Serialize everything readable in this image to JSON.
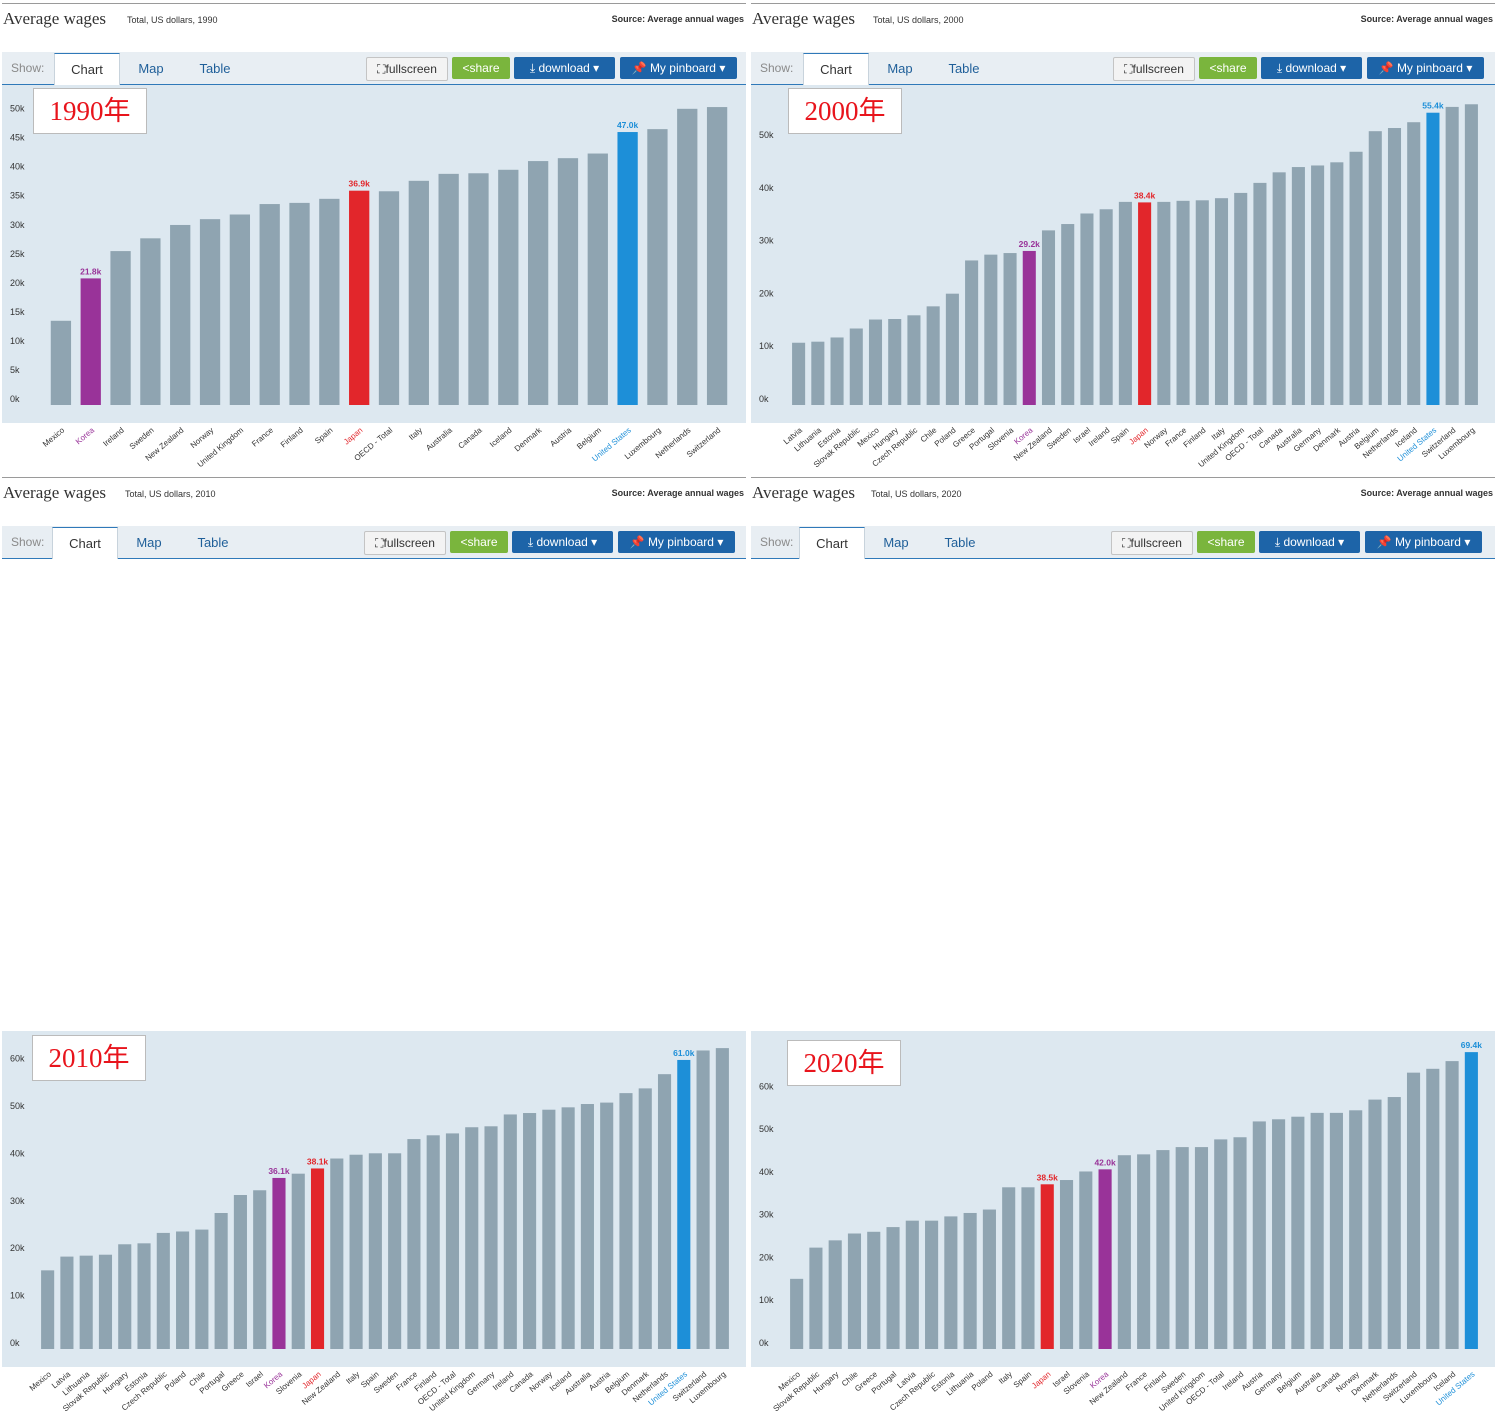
{
  "panels": [
    {
      "title": "Average wages",
      "subtitle": "Total, US dollars, 1990",
      "source": "Source: Average annual wages",
      "ui": {
        "show": "Show:",
        "tabs": [
          "Chart",
          "Map",
          "Table"
        ],
        "fullscreen": "fullscreen",
        "share": "share",
        "download": "download",
        "pinboard": "My pinboard"
      },
      "year_label": "1990年",
      "chart_data": {
        "type": "bar",
        "ylim": [
          0,
          52000
        ],
        "yticks": [
          0,
          5000,
          10000,
          15000,
          20000,
          25000,
          30000,
          35000,
          40000,
          45000,
          50000
        ],
        "ytick_labels": [
          "0k",
          "5k",
          "10k",
          "15k",
          "20k",
          "25k",
          "30k",
          "35k",
          "40k",
          "45k",
          "50k"
        ],
        "categories": [
          "Mexico",
          "Korea",
          "Ireland",
          "Sweden",
          "New Zealand",
          "Norway",
          "United Kingdom",
          "France",
          "Finland",
          "Spain",
          "Japan",
          "OECD - Total",
          "Italy",
          "Australia",
          "Canada",
          "Iceland",
          "Denmark",
          "Austria",
          "Belgium",
          "United States",
          "Luxembourg",
          "Netherlands",
          "Switzerland"
        ],
        "values": [
          14500,
          21800,
          26500,
          28700,
          31000,
          32000,
          32800,
          34600,
          34800,
          35500,
          36900,
          36800,
          38600,
          39800,
          39900,
          40500,
          42000,
          42500,
          43300,
          47000,
          47500,
          51000,
          51300
        ],
        "highlights": [
          {
            "category": "Korea",
            "color": "#993399",
            "label": "21.8k"
          },
          {
            "category": "Japan",
            "color": "#e2262b",
            "label": "36.9k"
          },
          {
            "category": "United States",
            "color": "#1d8fd8",
            "label": "47.0k"
          }
        ],
        "default_color": "#8fa4b1"
      }
    },
    {
      "title": "Average wages",
      "subtitle": "Total, US dollars, 2000",
      "source": "Source: Average annual wages",
      "ui": {
        "show": "Show:",
        "tabs": [
          "Chart",
          "Map",
          "Table"
        ],
        "fullscreen": "fullscreen",
        "share": "share",
        "download": "download",
        "pinboard": "My pinboard"
      },
      "year_label": "2000年",
      "chart_data": {
        "type": "bar",
        "ylim": [
          0,
          58000
        ],
        "yticks": [
          0,
          10000,
          20000,
          30000,
          40000,
          50000
        ],
        "ytick_labels": [
          "0k",
          "10k",
          "20k",
          "30k",
          "40k",
          "50k"
        ],
        "categories": [
          "Latvia",
          "Lithuania",
          "Estonia",
          "Slovak Republic",
          "Mexico",
          "Hungary",
          "Czech Republic",
          "Chile",
          "Poland",
          "Greece",
          "Portugal",
          "Slovenia",
          "Korea",
          "New Zealand",
          "Sweden",
          "Israel",
          "Ireland",
          "Spain",
          "Japan",
          "Norway",
          "France",
          "Finland",
          "Italy",
          "United Kingdom",
          "OECD - Total",
          "Canada",
          "Australia",
          "Germany",
          "Denmark",
          "Austria",
          "Belgium",
          "Netherlands",
          "Iceland",
          "United States",
          "Switzerland",
          "Luxembourg"
        ],
        "values": [
          11800,
          12000,
          12800,
          14500,
          16200,
          16300,
          17000,
          18700,
          21100,
          27400,
          28500,
          28800,
          29200,
          33100,
          34300,
          36300,
          37100,
          38500,
          38400,
          38500,
          38700,
          38800,
          39200,
          40200,
          42100,
          44100,
          45100,
          45400,
          46000,
          48000,
          51900,
          52500,
          53600,
          55400,
          56500,
          57000
        ],
        "highlights": [
          {
            "category": "Korea",
            "color": "#993399",
            "label": "29.2k"
          },
          {
            "category": "Japan",
            "color": "#e2262b",
            "label": "38.4k"
          },
          {
            "category": "United States",
            "color": "#1d8fd8",
            "label": "55.4k"
          }
        ],
        "default_color": "#8fa4b1"
      }
    },
    {
      "title": "Average wages",
      "subtitle": "Total, US dollars, 2010",
      "source": "Source: Average annual wages",
      "ui": {
        "show": "Show:",
        "tabs": [
          "Chart",
          "Map",
          "Table"
        ],
        "fullscreen": "fullscreen",
        "share": "share",
        "download": "download",
        "pinboard": "My pinboard"
      },
      "year_label": "2010年",
      "chart_data": {
        "type": "bar",
        "ylim": [
          0,
          65000
        ],
        "yticks": [
          0,
          10000,
          20000,
          30000,
          40000,
          50000,
          60000
        ],
        "ytick_labels": [
          "0k",
          "10k",
          "20k",
          "30k",
          "40k",
          "50k",
          "60k"
        ],
        "categories": [
          "Mexico",
          "Latvia",
          "Lithuania",
          "Slovak Republic",
          "Hungary",
          "Estonia",
          "Czech Republic",
          "Poland",
          "Chile",
          "Portugal",
          "Greece",
          "Israel",
          "Korea",
          "Slovenia",
          "Japan",
          "New Zealand",
          "Italy",
          "Spain",
          "Sweden",
          "France",
          "Finland",
          "OECD - Total",
          "United Kingdom",
          "Germany",
          "Ireland",
          "Canada",
          "Norway",
          "Iceland",
          "Australia",
          "Austria",
          "Belgium",
          "Denmark",
          "Netherlands",
          "United States",
          "Switzerland",
          "Luxembourg"
        ],
        "values": [
          16600,
          19500,
          19700,
          19900,
          22100,
          22300,
          24500,
          24800,
          25200,
          28700,
          32500,
          33500,
          36100,
          37000,
          38100,
          40200,
          41000,
          41300,
          41300,
          44300,
          45100,
          45500,
          46800,
          47000,
          49500,
          49800,
          50500,
          51000,
          51700,
          52000,
          54000,
          55000,
          58000,
          61000,
          63000,
          63500
        ],
        "highlights": [
          {
            "category": "Korea",
            "color": "#993399",
            "label": "36.1k"
          },
          {
            "category": "Japan",
            "color": "#e2262b",
            "label": "38.1k"
          },
          {
            "category": "United States",
            "color": "#1d8fd8",
            "label": "61.0k"
          }
        ],
        "default_color": "#8fa4b1"
      }
    },
    {
      "title": "Average wages",
      "subtitle": "Total, US dollars, 2020",
      "source": "Source: Average annual wages",
      "ui": {
        "show": "Show:",
        "tabs": [
          "Chart",
          "Map",
          "Table"
        ],
        "fullscreen": "fullscreen",
        "share": "share",
        "download": "download",
        "pinboard": "My pinboard"
      },
      "year_label": "2020年",
      "chart_data": {
        "type": "bar",
        "ylim": [
          0,
          72000
        ],
        "yticks": [
          0,
          10000,
          20000,
          30000,
          40000,
          50000,
          60000
        ],
        "ytick_labels": [
          "0k",
          "10k",
          "20k",
          "30k",
          "40k",
          "50k",
          "60k"
        ],
        "categories": [
          "Mexico",
          "Slovak Republic",
          "Hungary",
          "Chile",
          "Greece",
          "Portugal",
          "Latvia",
          "Czech Republic",
          "Estonia",
          "Lithuania",
          "Poland",
          "Italy",
          "Spain",
          "Japan",
          "Israel",
          "Slovenia",
          "Korea",
          "New Zealand",
          "France",
          "Finland",
          "Sweden",
          "United Kingdom",
          "OECD - Total",
          "Ireland",
          "Austria",
          "Germany",
          "Belgium",
          "Australia",
          "Canada",
          "Norway",
          "Denmark",
          "Netherlands",
          "Switzerland",
          "Luxembourg",
          "Iceland",
          "United States"
        ],
        "values": [
          16400,
          23700,
          25400,
          27000,
          27400,
          28500,
          30000,
          30000,
          31000,
          31800,
          32600,
          37800,
          37800,
          38500,
          39500,
          41500,
          42000,
          45300,
          45500,
          46500,
          47200,
          47200,
          49000,
          49500,
          53200,
          53700,
          54300,
          55200,
          55200,
          55800,
          58300,
          58900,
          64600,
          65500,
          67300,
          69400
        ],
        "highlights": [
          {
            "category": "Japan",
            "color": "#e2262b",
            "label": "38.5k"
          },
          {
            "category": "Korea",
            "color": "#993399",
            "label": "42.0k"
          },
          {
            "category": "United States",
            "color": "#1d8fd8",
            "label": "69.4k"
          }
        ],
        "default_color": "#8fa4b1"
      }
    }
  ]
}
